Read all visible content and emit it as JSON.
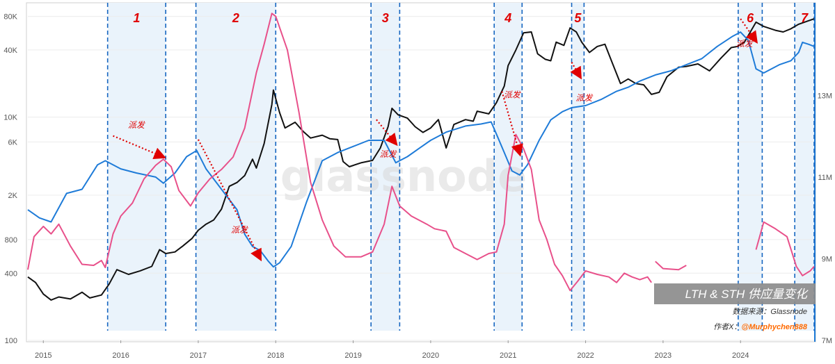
{
  "chart_data": {
    "type": "line",
    "title": "LTH & STH 供应量变化",
    "source_label": "数据来源：Glassnode",
    "author_prefix": "作者X：",
    "author_handle": "@Murphychen888",
    "watermark": "glassnode",
    "x_ticks": [
      "2015",
      "2016",
      "2017",
      "2018",
      "2019",
      "2020",
      "2021",
      "2022",
      "2023",
      "2024"
    ],
    "x_range": [
      2014.8,
      2024.95
    ],
    "y_left_ticks": [
      {
        "label": "100",
        "value": 100
      },
      {
        "label": "400",
        "value": 400
      },
      {
        "label": "800",
        "value": 800
      },
      {
        "label": "2K",
        "value": 2000
      },
      {
        "label": "6K",
        "value": 6000
      },
      {
        "label": "10K",
        "value": 10000
      },
      {
        "label": "40K",
        "value": 40000
      },
      {
        "label": "80K",
        "value": 80000
      }
    ],
    "y_left_range": [
      100,
      100000
    ],
    "y_left_scale": "log",
    "y_right_ticks": [
      {
        "label": "7M",
        "value": 7
      },
      {
        "label": "9M",
        "value": 9
      },
      {
        "label": "11M",
        "value": 11
      },
      {
        "label": "13M",
        "value": 13
      }
    ],
    "y_right_range": [
      7,
      15.2
    ],
    "series": [
      {
        "color": "#111111",
        "axis": "left",
        "points": [
          [
            2014.8,
            370
          ],
          [
            2014.9,
            330
          ],
          [
            2015.0,
            260
          ],
          [
            2015.1,
            230
          ],
          [
            2015.2,
            245
          ],
          [
            2015.35,
            235
          ],
          [
            2015.5,
            270
          ],
          [
            2015.6,
            240
          ],
          [
            2015.75,
            255
          ],
          [
            2015.85,
            320
          ],
          [
            2015.95,
            430
          ],
          [
            2016.1,
            390
          ],
          [
            2016.25,
            420
          ],
          [
            2016.4,
            460
          ],
          [
            2016.5,
            650
          ],
          [
            2016.58,
            600
          ],
          [
            2016.7,
            620
          ],
          [
            2016.8,
            700
          ],
          [
            2016.92,
            820
          ],
          [
            2017.0,
            970
          ],
          [
            2017.1,
            1100
          ],
          [
            2017.2,
            1200
          ],
          [
            2017.3,
            1500
          ],
          [
            2017.4,
            2400
          ],
          [
            2017.5,
            2600
          ],
          [
            2017.6,
            3000
          ],
          [
            2017.7,
            4200
          ],
          [
            2017.75,
            3500
          ],
          [
            2017.85,
            5800
          ],
          [
            2017.95,
            13000
          ],
          [
            2017.97,
            17500
          ],
          [
            2018.05,
            11000
          ],
          [
            2018.12,
            8000
          ],
          [
            2018.25,
            9000
          ],
          [
            2018.35,
            7500
          ],
          [
            2018.45,
            6500
          ],
          [
            2018.6,
            6900
          ],
          [
            2018.7,
            6400
          ],
          [
            2018.8,
            6300
          ],
          [
            2018.87,
            4000
          ],
          [
            2018.95,
            3600
          ],
          [
            2019.1,
            3900
          ],
          [
            2019.25,
            4100
          ],
          [
            2019.35,
            5300
          ],
          [
            2019.45,
            8200
          ],
          [
            2019.5,
            12000
          ],
          [
            2019.58,
            10500
          ],
          [
            2019.7,
            9800
          ],
          [
            2019.8,
            8200
          ],
          [
            2019.9,
            7300
          ],
          [
            2020.0,
            8000
          ],
          [
            2020.1,
            9500
          ],
          [
            2020.2,
            5300
          ],
          [
            2020.3,
            8600
          ],
          [
            2020.45,
            9500
          ],
          [
            2020.55,
            9200
          ],
          [
            2020.6,
            11300
          ],
          [
            2020.75,
            10700
          ],
          [
            2020.85,
            13500
          ],
          [
            2020.95,
            19000
          ],
          [
            2021.0,
            29000
          ],
          [
            2021.1,
            40000
          ],
          [
            2021.2,
            57000
          ],
          [
            2021.3,
            58000
          ],
          [
            2021.38,
            37000
          ],
          [
            2021.48,
            33000
          ],
          [
            2021.55,
            32000
          ],
          [
            2021.62,
            47000
          ],
          [
            2021.72,
            44000
          ],
          [
            2021.8,
            63000
          ],
          [
            2021.88,
            58000
          ],
          [
            2021.95,
            47000
          ],
          [
            2022.05,
            38000
          ],
          [
            2022.15,
            43000
          ],
          [
            2022.25,
            45000
          ],
          [
            2022.35,
            30000
          ],
          [
            2022.45,
            20000
          ],
          [
            2022.55,
            22000
          ],
          [
            2022.65,
            20000
          ],
          [
            2022.75,
            19500
          ],
          [
            2022.85,
            16000
          ],
          [
            2022.95,
            16700
          ],
          [
            2023.05,
            23000
          ],
          [
            2023.2,
            28000
          ],
          [
            2023.3,
            28500
          ],
          [
            2023.45,
            30000
          ],
          [
            2023.6,
            26000
          ],
          [
            2023.75,
            34000
          ],
          [
            2023.88,
            42000
          ],
          [
            2023.96,
            43000
          ],
          [
            2024.05,
            47000
          ],
          [
            2024.2,
            71000
          ],
          [
            2024.3,
            65000
          ],
          [
            2024.45,
            60000
          ],
          [
            2024.55,
            58000
          ],
          [
            2024.65,
            62000
          ],
          [
            2024.75,
            68000
          ],
          [
            2024.85,
            72000
          ],
          [
            2024.95,
            76000
          ]
        ]
      },
      {
        "color": "#1e7bd8",
        "axis": "right",
        "points": [
          [
            2014.8,
            10.2
          ],
          [
            2014.95,
            10.0
          ],
          [
            2015.1,
            9.9
          ],
          [
            2015.3,
            10.6
          ],
          [
            2015.5,
            10.7
          ],
          [
            2015.7,
            11.3
          ],
          [
            2015.8,
            11.4
          ],
          [
            2016.0,
            11.2
          ],
          [
            2016.2,
            11.1
          ],
          [
            2016.45,
            11.0
          ],
          [
            2016.55,
            10.85
          ],
          [
            2016.7,
            11.1
          ],
          [
            2016.85,
            11.5
          ],
          [
            2016.98,
            11.65
          ],
          [
            2017.1,
            11.2
          ],
          [
            2017.3,
            10.7
          ],
          [
            2017.5,
            10.2
          ],
          [
            2017.6,
            9.6
          ],
          [
            2017.7,
            9.3
          ],
          [
            2017.8,
            9.2
          ],
          [
            2017.9,
            8.95
          ],
          [
            2017.97,
            8.8
          ],
          [
            2018.05,
            8.9
          ],
          [
            2018.2,
            9.3
          ],
          [
            2018.4,
            10.4
          ],
          [
            2018.6,
            11.4
          ],
          [
            2018.8,
            11.6
          ],
          [
            2019.0,
            11.75
          ],
          [
            2019.2,
            11.9
          ],
          [
            2019.4,
            11.9
          ],
          [
            2019.55,
            11.35
          ],
          [
            2019.7,
            11.5
          ],
          [
            2019.85,
            11.7
          ],
          [
            2020.0,
            11.9
          ],
          [
            2020.2,
            12.1
          ],
          [
            2020.45,
            12.25
          ],
          [
            2020.65,
            12.3
          ],
          [
            2020.78,
            12.35
          ],
          [
            2020.85,
            12.05
          ],
          [
            2020.95,
            11.6
          ],
          [
            2021.05,
            11.15
          ],
          [
            2021.15,
            11.05
          ],
          [
            2021.25,
            11.3
          ],
          [
            2021.4,
            11.9
          ],
          [
            2021.55,
            12.4
          ],
          [
            2021.7,
            12.6
          ],
          [
            2021.82,
            12.7
          ],
          [
            2022.0,
            12.75
          ],
          [
            2022.2,
            12.9
          ],
          [
            2022.4,
            13.1
          ],
          [
            2022.55,
            13.2
          ],
          [
            2022.7,
            13.35
          ],
          [
            2022.9,
            13.5
          ],
          [
            2023.1,
            13.6
          ],
          [
            2023.3,
            13.75
          ],
          [
            2023.5,
            13.9
          ],
          [
            2023.7,
            14.2
          ],
          [
            2023.9,
            14.45
          ],
          [
            2024.0,
            14.55
          ],
          [
            2024.1,
            14.35
          ],
          [
            2024.2,
            13.65
          ],
          [
            2024.3,
            13.55
          ],
          [
            2024.5,
            13.75
          ],
          [
            2024.65,
            13.85
          ],
          [
            2024.75,
            14.05
          ],
          [
            2024.8,
            14.3
          ],
          [
            2024.88,
            14.25
          ],
          [
            2024.95,
            14.2
          ]
        ]
      },
      {
        "color": "#e8508a",
        "axis": "left",
        "points": [
          [
            2014.8,
            430
          ],
          [
            2014.88,
            850
          ],
          [
            2015.0,
            1050
          ],
          [
            2015.1,
            900
          ],
          [
            2015.2,
            1100
          ],
          [
            2015.35,
            700
          ],
          [
            2015.5,
            480
          ],
          [
            2015.65,
            470
          ],
          [
            2015.75,
            520
          ],
          [
            2015.8,
            450
          ],
          [
            2015.9,
            900
          ],
          [
            2016.0,
            1300
          ],
          [
            2016.15,
            1700
          ],
          [
            2016.3,
            2800
          ],
          [
            2016.45,
            3700
          ],
          [
            2016.55,
            4200
          ],
          [
            2016.65,
            3600
          ],
          [
            2016.75,
            2200
          ],
          [
            2016.9,
            1600
          ],
          [
            2017.0,
            2100
          ],
          [
            2017.15,
            2800
          ],
          [
            2017.3,
            3400
          ],
          [
            2017.45,
            4400
          ],
          [
            2017.6,
            8000
          ],
          [
            2017.75,
            25000
          ],
          [
            2017.85,
            45000
          ],
          [
            2017.95,
            85000
          ],
          [
            2018.0,
            80000
          ],
          [
            2018.15,
            40000
          ],
          [
            2018.3,
            11000
          ],
          [
            2018.45,
            2600
          ],
          [
            2018.6,
            1200
          ],
          [
            2018.75,
            700
          ],
          [
            2018.9,
            560
          ],
          [
            2019.1,
            560
          ],
          [
            2019.25,
            620
          ],
          [
            2019.4,
            1100
          ],
          [
            2019.5,
            2400
          ],
          [
            2019.6,
            1600
          ],
          [
            2019.75,
            1300
          ],
          [
            2019.95,
            1100
          ],
          [
            2020.05,
            1000
          ],
          [
            2020.2,
            950
          ],
          [
            2020.3,
            680
          ],
          [
            2020.45,
            600
          ],
          [
            2020.6,
            530
          ],
          [
            2020.75,
            600
          ],
          [
            2020.85,
            620
          ],
          [
            2020.95,
            1100
          ],
          [
            2021.0,
            3000
          ],
          [
            2021.1,
            7000
          ],
          [
            2021.2,
            5200
          ],
          [
            2021.3,
            3400
          ],
          [
            2021.4,
            1200
          ],
          [
            2021.5,
            800
          ],
          [
            2021.6,
            480
          ],
          [
            2021.7,
            380
          ],
          [
            2021.8,
            280
          ],
          [
            2021.9,
            340
          ],
          [
            2022.0,
            420
          ],
          [
            2022.15,
            390
          ],
          [
            2022.3,
            370
          ],
          [
            2022.4,
            330
          ],
          [
            2022.5,
            400
          ],
          [
            2022.6,
            370
          ],
          [
            2022.7,
            350
          ],
          [
            2022.8,
            370
          ],
          [
            2022.85,
            330
          ]
        ]
      },
      {
        "color": "#e8508a",
        "axis": "left",
        "points": [
          [
            2022.9,
            510
          ],
          [
            2023.0,
            440
          ],
          [
            2023.2,
            430
          ],
          [
            2023.3,
            470
          ]
        ]
      },
      {
        "color": "#e8508a",
        "axis": "left",
        "points": [
          [
            2024.2,
            650
          ],
          [
            2024.3,
            1150
          ],
          [
            2024.45,
            1000
          ],
          [
            2024.6,
            850
          ],
          [
            2024.72,
            460
          ],
          [
            2024.8,
            380
          ],
          [
            2024.9,
            420
          ],
          [
            2024.95,
            460
          ]
        ]
      }
    ],
    "periods": [
      {
        "label": "1",
        "start": 2015.83,
        "end": 2016.58
      },
      {
        "label": "2",
        "start": 2016.97,
        "end": 2018.0
      },
      {
        "label": "3",
        "start": 2019.23,
        "end": 2019.6
      },
      {
        "label": "4",
        "start": 2020.82,
        "end": 2021.18
      },
      {
        "label": "5",
        "start": 2021.82,
        "end": 2021.98
      },
      {
        "label": "6",
        "start": 2023.97,
        "end": 2024.28
      },
      {
        "label": "7",
        "start": 2024.7,
        "end": 2024.95
      }
    ],
    "distribution_labels": [
      {
        "text": "派发",
        "x": 2016.2,
        "y": 8000
      },
      {
        "text": "派发",
        "x": 2017.53,
        "y": 920
      },
      {
        "text": "派发",
        "x": 2019.45,
        "y": 4400
      },
      {
        "text": "派发",
        "x": 2021.05,
        "y": 15000
      },
      {
        "text": "派发",
        "x": 2021.98,
        "y": 14000
      },
      {
        "text": "派发",
        "x": 2024.05,
        "y": 43000
      }
    ],
    "distribution_arrows": [
      {
        "from": [
          2015.9,
          6800
        ],
        "to": [
          2016.55,
          4400
        ]
      },
      {
        "from": [
          2017.0,
          6300
        ],
        "to": [
          2017.8,
          540
        ]
      },
      {
        "from": [
          2019.3,
          9500
        ],
        "to": [
          2019.55,
          5800
        ]
      },
      {
        "from": [
          2020.92,
          17000
        ],
        "to": [
          2021.15,
          4700
        ]
      },
      {
        "from": [
          2021.82,
          31000
        ],
        "to": [
          2021.93,
          23000
        ]
      },
      {
        "from": [
          2024.0,
          76000
        ],
        "to": [
          2024.2,
          48000
        ]
      }
    ]
  }
}
